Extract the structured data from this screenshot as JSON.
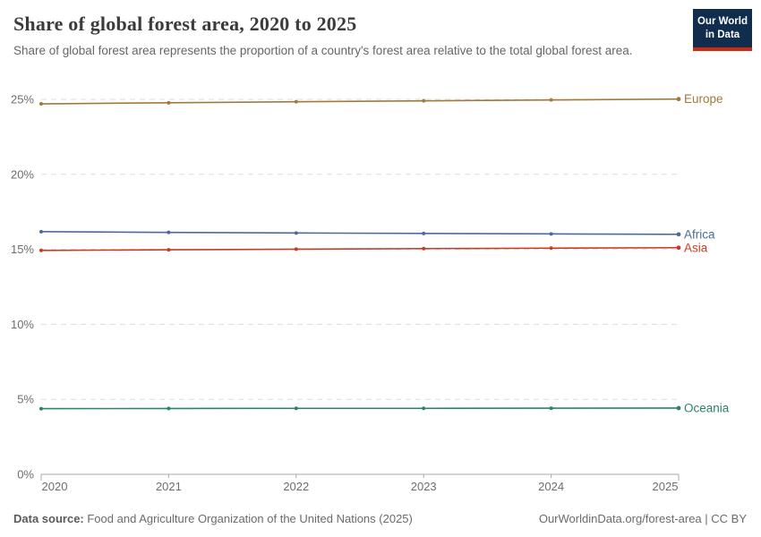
{
  "header": {
    "title": "Share of global forest area, 2020 to 2025",
    "subtitle": "Share of global forest area represents the proportion of a country's forest area relative to the total global forest area.",
    "logo": {
      "line1": "Our World",
      "line2": "in Data",
      "bg_color": "#102D4E",
      "bar_color": "#CC2C13"
    }
  },
  "chart_data": {
    "type": "line",
    "title": "Share of global forest area, 2020 to 2025",
    "x": [
      2020,
      2021,
      2022,
      2023,
      2024,
      2025
    ],
    "xtick_labels": [
      "2020",
      "2021",
      "2022",
      "2023",
      "2024",
      "2025"
    ],
    "series": [
      {
        "name": "Europe",
        "color": "#A2793D",
        "values": [
          24.7,
          24.77,
          24.84,
          24.9,
          24.96,
          25.02
        ]
      },
      {
        "name": "Africa",
        "color": "#4C6A9C",
        "values": [
          16.18,
          16.13,
          16.09,
          16.06,
          16.03,
          16.0
        ]
      },
      {
        "name": "Asia",
        "color": "#C93C22",
        "values": [
          14.93,
          14.97,
          15.01,
          15.05,
          15.08,
          15.11
        ]
      },
      {
        "name": "Oceania",
        "color": "#2C8465",
        "values": [
          4.38,
          4.39,
          4.4,
          4.4,
          4.41,
          4.42
        ]
      }
    ],
    "ylim": [
      0,
      25
    ],
    "yticks": [
      0,
      5,
      10,
      15,
      20,
      25
    ],
    "ytick_labels": [
      "0%",
      "5%",
      "10%",
      "15%",
      "20%",
      "25%"
    ],
    "unit": "%",
    "grid": "horizontal-dashed",
    "legend_position": "right-of-line-ends",
    "axis_color": "#a9a9a9",
    "grid_color": "#dddddd"
  },
  "footer": {
    "source_label": "Data source:",
    "source_text": " Food and Agriculture Organization of the United Nations (2025)",
    "link_text": "OurWorldinData.org/forest-area | CC BY"
  }
}
